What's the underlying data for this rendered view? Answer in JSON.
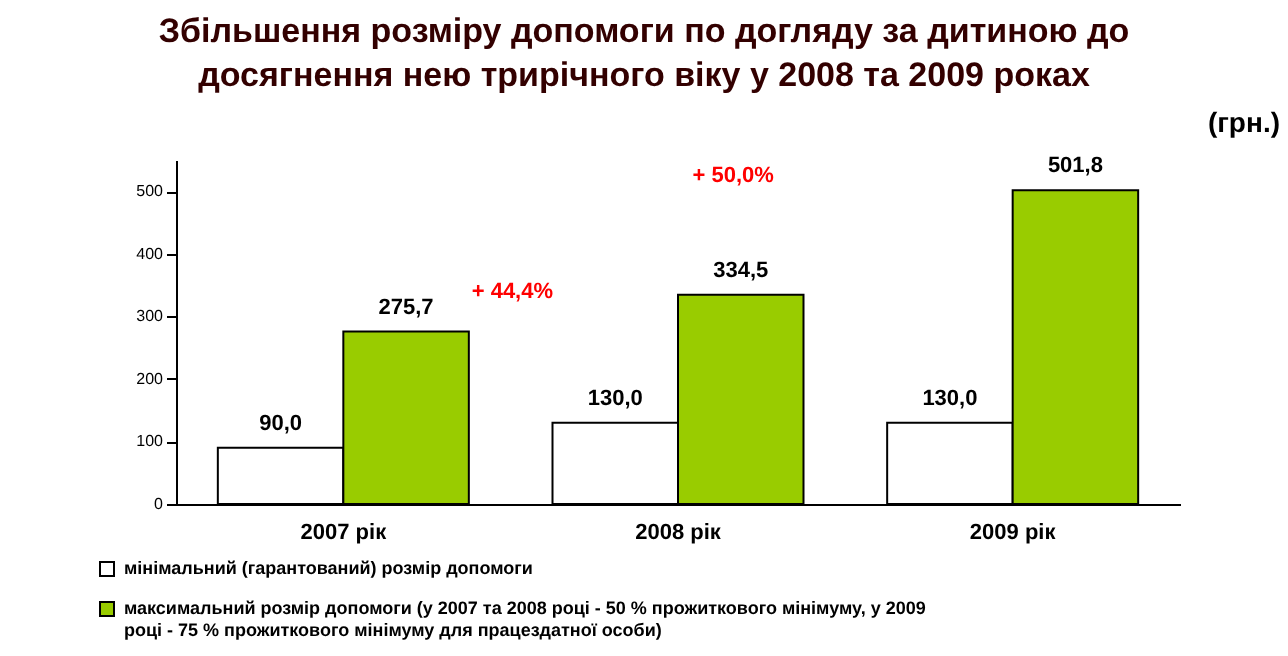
{
  "chart_data": {
    "type": "bar",
    "title": "Збільшення розміру допомоги по догляду за дитиною до досягнення нею трирічного віку у 2008 та 2009 роках",
    "ylabel": "(грн.)",
    "categories": [
      "2007 рік",
      "2008 рік",
      "2009 рік"
    ],
    "series": [
      {
        "name": "мінімальний (гарантований) розмір допомоги",
        "color": "#ffffff",
        "values": [
          90.0,
          130.0,
          130.0
        ],
        "value_labels": [
          "90,0",
          "130,0",
          "130,0"
        ]
      },
      {
        "name": "максимальний розмір допомоги (у 2007 та 2008 році - 50 % прожиткового мінімуму, у 2009 році - 75 % прожиткового мінімуму для працездатної особи)",
        "color": "#99cc00",
        "values": [
          275.7,
          334.5,
          501.8
        ],
        "value_labels": [
          "275,7",
          "334,5",
          "501,8"
        ]
      }
    ],
    "annotations": [
      "+ 44,4%",
      "+ 50,0%"
    ],
    "ylim": [
      0,
      550
    ],
    "yticks": [
      0,
      100,
      200,
      300,
      400,
      500
    ],
    "grid": false,
    "legend": "bottom"
  }
}
